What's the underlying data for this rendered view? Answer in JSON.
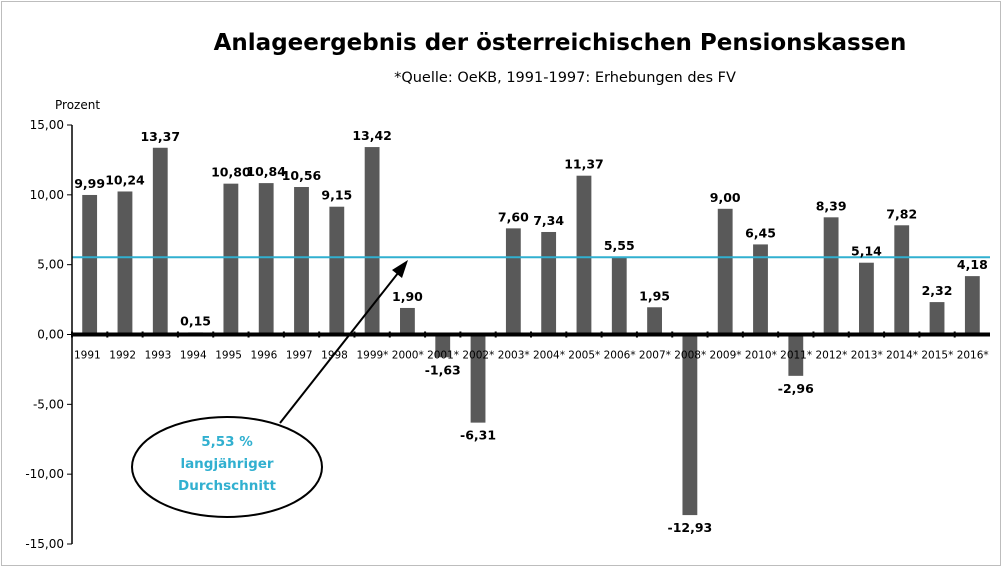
{
  "chart_data": {
    "type": "bar",
    "title": "Anlageergebnis der österreichischen Pensionskassen",
    "subtitle": "*Quelle: OeKB, 1991-1997: Erhebungen des FV",
    "ylabel": "Prozent",
    "ylim": [
      -15,
      15
    ],
    "yticks": [
      "15,00",
      "10,00",
      "5,00",
      "0,00",
      "-5,00",
      "-10,00",
      "-15,00"
    ],
    "ytick_values": [
      15,
      10,
      5,
      0,
      -5,
      -10,
      -15
    ],
    "categories": [
      "1991",
      "1992",
      "1993",
      "1994",
      "1995",
      "1996",
      "1997",
      "1998",
      "1999*",
      "2000*",
      "2001*",
      "2002*",
      "2003*",
      "2004*",
      "2005*",
      "2006*",
      "2007*",
      "2008*",
      "2009*",
      "2010*",
      "2011*",
      "2012*",
      "2013*",
      "2014*",
      "2015*",
      "2016*"
    ],
    "values": [
      9.99,
      10.24,
      13.37,
      0.15,
      10.8,
      10.84,
      10.56,
      9.15,
      13.42,
      1.9,
      -1.63,
      -6.31,
      7.6,
      7.34,
      11.37,
      5.55,
      1.95,
      -12.93,
      9.0,
      6.45,
      -2.96,
      8.39,
      5.14,
      7.82,
      2.32,
      4.18
    ],
    "labels": [
      "9,99",
      "10,24",
      "13,37",
      "0,15",
      "10,80",
      "10,84",
      "10,56",
      "9,15",
      "13,42",
      "1,90",
      "-1,63",
      "-6,31",
      "7,60",
      "7,34",
      "11,37",
      "5,55",
      "1,95",
      "-12,93",
      "9,00",
      "6,45",
      "-2,96",
      "8,39",
      "5,14",
      "7,82",
      "2,32",
      "4,18"
    ],
    "bar_color": "#595959",
    "average": {
      "value": 5.53,
      "color": "#31b0d0",
      "label_lines": [
        "5,53 %",
        "langjähriger",
        "Durchschnitt"
      ]
    },
    "grid": false
  }
}
